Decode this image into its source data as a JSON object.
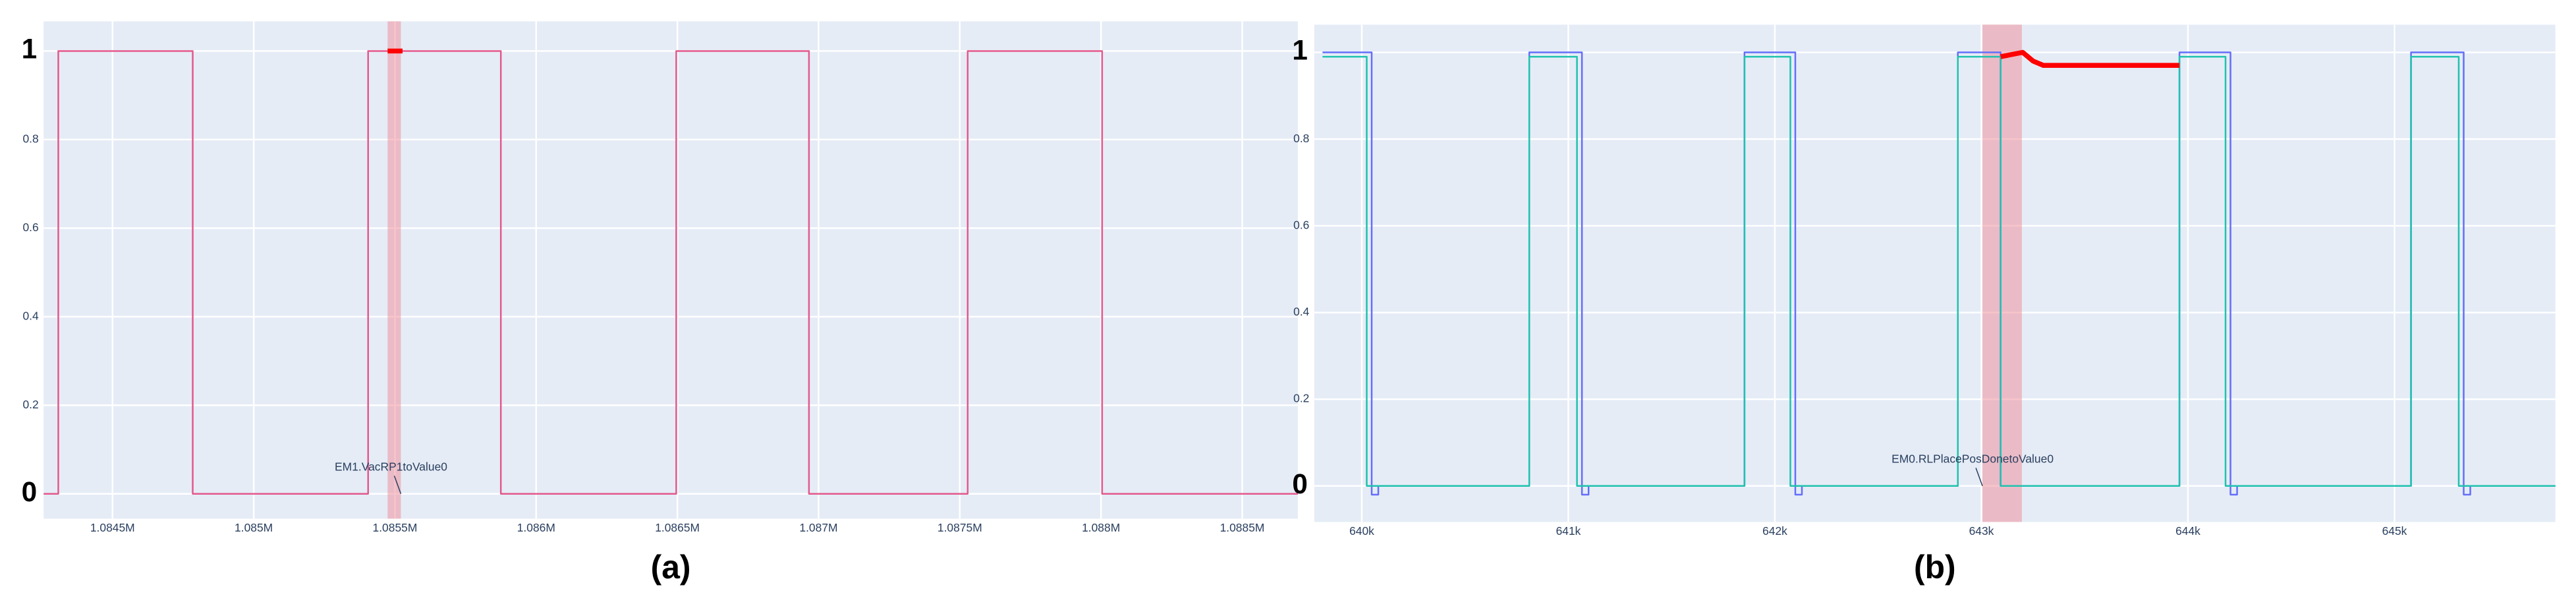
{
  "chart_data": [
    {
      "type": "line",
      "caption": "(a)",
      "xlim": [
        1084256,
        1088697
      ],
      "ylim": [
        -0.056,
        1.067
      ],
      "xticks": [
        {
          "value": 1084500,
          "label": "1.0845M"
        },
        {
          "value": 1085000,
          "label": "1.085M"
        },
        {
          "value": 1085500,
          "label": "1.0855M"
        },
        {
          "value": 1086000,
          "label": "1.086M"
        },
        {
          "value": 1086500,
          "label": "1.0865M"
        },
        {
          "value": 1087000,
          "label": "1.087M"
        },
        {
          "value": 1087500,
          "label": "1.0875M"
        },
        {
          "value": 1088000,
          "label": "1.088M"
        },
        {
          "value": 1088500,
          "label": "1.0885M"
        }
      ],
      "yticks": [
        0,
        0.2,
        0.4,
        0.6,
        0.8,
        1
      ],
      "grid": true,
      "highlight": [
        1085474,
        1085521
      ],
      "annotation": {
        "text": "EM1.VacRP1toValue0",
        "x": 1085521,
        "y": 0
      },
      "series": [
        {
          "color": "#e4588c",
          "line_width": 1,
          "x": [
            1084256,
            1084308,
            1084308,
            1084784,
            1084784,
            1085405,
            1085405,
            1085875,
            1085875,
            1086496,
            1086496,
            1086966,
            1086966,
            1087528,
            1087528,
            1088004,
            1088004,
            1088697
          ],
          "values": [
            0,
            0,
            1,
            1,
            0,
            0,
            1,
            1,
            0,
            0,
            1,
            1,
            0,
            0,
            1,
            1,
            0,
            0
          ]
        },
        {
          "color": "#ff0000",
          "line_width": 3,
          "x": [
            1085474,
            1085527
          ],
          "values": [
            1,
            1
          ]
        }
      ]
    },
    {
      "type": "line",
      "caption": "(b)",
      "xlim": [
        639770,
        645779
      ],
      "ylim": [
        -0.083,
        1.064
      ],
      "xticks": [
        {
          "value": 640000,
          "label": "640k"
        },
        {
          "value": 641000,
          "label": "641k"
        },
        {
          "value": 642000,
          "label": "642k"
        },
        {
          "value": 643000,
          "label": "643k"
        },
        {
          "value": 644000,
          "label": "644k"
        },
        {
          "value": 645000,
          "label": "645k"
        }
      ],
      "yticks": [
        0,
        0.2,
        0.4,
        0.6,
        0.8,
        1
      ],
      "grid": true,
      "highlight": [
        643005,
        643196
      ],
      "annotation": {
        "text": "EM0.RLPlacePosDonetoValue0",
        "x": 643005,
        "y": 0
      },
      "series": [
        {
          "color": "#636efa",
          "line_width": 1,
          "x": [
            639810,
            640048,
            640048,
            640080,
            640080,
            640811,
            640811,
            641066,
            641066,
            641098,
            641098,
            641853,
            641853,
            642099,
            642099,
            642131,
            642131,
            642886,
            642886,
            643093,
            643093,
            643959,
            643959,
            644206,
            644206,
            644238,
            644238,
            645080,
            645080,
            645335,
            645335,
            645367,
            645367,
            645779
          ],
          "values": [
            1.0,
            1.0,
            -0.02,
            -0.02,
            0,
            0,
            1.0,
            1.0,
            -0.02,
            -0.02,
            0,
            0,
            1.0,
            1.0,
            -0.02,
            -0.02,
            0,
            0,
            1.0,
            1.0,
            0,
            0,
            1.0,
            1.0,
            -0.02,
            -0.02,
            0,
            0,
            1.0,
            1.0,
            -0.02,
            -0.02,
            0,
            0
          ]
        },
        {
          "color": "#1fc2ae",
          "line_width": 1,
          "x": [
            639810,
            640024,
            640024,
            640811,
            640811,
            641042,
            641042,
            641853,
            641853,
            642075,
            642075,
            642886,
            642886,
            643093,
            643093,
            643959,
            643959,
            644182,
            644182,
            645080,
            645080,
            645311,
            645311,
            645779
          ],
          "values": [
            0.99,
            0.99,
            0,
            0,
            0.99,
            0.99,
            0,
            0,
            0.99,
            0.99,
            0,
            0,
            0.99,
            0.99,
            0,
            0,
            0.99,
            0.99,
            0,
            0,
            0.99,
            0.99,
            0,
            0
          ]
        },
        {
          "color": "#ff0000",
          "line_width": 3,
          "x": [
            643093,
            643200,
            643250,
            643300,
            643400,
            643959
          ],
          "values": [
            0.99,
            1.0,
            0.98,
            0.97,
            0.97,
            0.97
          ]
        }
      ]
    }
  ]
}
